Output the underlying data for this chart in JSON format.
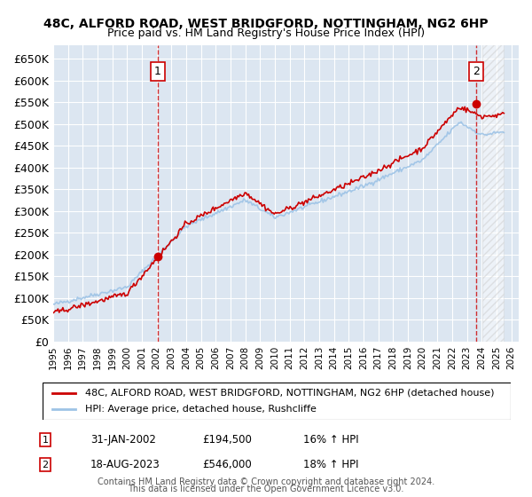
{
  "title1": "48C, ALFORD ROAD, WEST BRIDGFORD, NOTTINGHAM, NG2 6HP",
  "title2": "Price paid vs. HM Land Registry's House Price Index (HPI)",
  "xlabel": "",
  "ylabel": "",
  "ylim": [
    0,
    680000
  ],
  "yticks": [
    0,
    50000,
    100000,
    150000,
    200000,
    250000,
    300000,
    350000,
    400000,
    450000,
    500000,
    550000,
    600000,
    650000
  ],
  "ytick_labels": [
    "£0",
    "£50K",
    "£100K",
    "£150K",
    "£200K",
    "£250K",
    "£300K",
    "£350K",
    "£400K",
    "£450K",
    "£500K",
    "£550K",
    "£600K",
    "£650K"
  ],
  "background_color": "#dce6f1",
  "plot_bg_color": "#dce6f1",
  "grid_color": "#ffffff",
  "red_line_color": "#cc0000",
  "blue_line_color": "#9dc3e6",
  "marker_color": "#cc0000",
  "sale1_x": 2002.08,
  "sale1_y": 194500,
  "sale1_label": "1",
  "sale1_date": "31-JAN-2002",
  "sale1_price": "£194,500",
  "sale1_hpi": "16% ↑ HPI",
  "sale2_x": 2023.63,
  "sale2_y": 546000,
  "sale2_label": "2",
  "sale2_date": "18-AUG-2023",
  "sale2_price": "£546,000",
  "sale2_hpi": "18% ↑ HPI",
  "legend_line1": "48C, ALFORD ROAD, WEST BRIDGFORD, NOTTINGHAM, NG2 6HP (detached house)",
  "legend_line2": "HPI: Average price, detached house, Rushcliffe",
  "footer1": "Contains HM Land Registry data © Crown copyright and database right 2024.",
  "footer2": "This data is licensed under the Open Government Licence v3.0.",
  "xmin": 1995.0,
  "xmax": 2026.5
}
